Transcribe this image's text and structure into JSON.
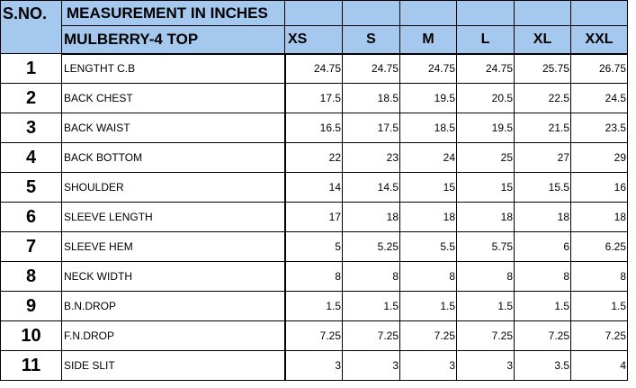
{
  "header": {
    "sno_label": "S.NO.",
    "measurement_label": "MEASUREMENT IN INCHES",
    "style_label": "MULBERRY-4 TOP",
    "sizes": [
      "XS",
      "S",
      "M",
      "L",
      "XL",
      "XXL"
    ]
  },
  "rows": [
    {
      "num": "1",
      "label": "LENGTHT C.B",
      "values": [
        "24.75",
        "24.75",
        "24.75",
        "24.75",
        "25.75",
        "26.75"
      ]
    },
    {
      "num": "2",
      "label": "BACK CHEST",
      "values": [
        "17.5",
        "18.5",
        "19.5",
        "20.5",
        "22.5",
        "24.5"
      ]
    },
    {
      "num": "3",
      "label": "BACK WAIST",
      "values": [
        "16.5",
        "17.5",
        "18.5",
        "19.5",
        "21.5",
        "23.5"
      ]
    },
    {
      "num": "4",
      "label": "BACK BOTTOM",
      "values": [
        "22",
        "23",
        "24",
        "25",
        "27",
        "29"
      ]
    },
    {
      "num": "5",
      "label": "SHOULDER",
      "values": [
        "14",
        "14.5",
        "15",
        "15",
        "15.5",
        "16"
      ]
    },
    {
      "num": "6",
      "label": "SLEEVE LENGTH",
      "values": [
        "17",
        "18",
        "18",
        "18",
        "18",
        "18"
      ]
    },
    {
      "num": "7",
      "label": "SLEEVE HEM",
      "values": [
        "5",
        "5.25",
        "5.5",
        "5.75",
        "6",
        "6.25"
      ]
    },
    {
      "num": "8",
      "label": "NECK WIDTH",
      "values": [
        "8",
        "8",
        "8",
        "8",
        "8",
        "8"
      ]
    },
    {
      "num": "9",
      "label": "B.N.DROP",
      "values": [
        "1.5",
        "1.5",
        "1.5",
        "1.5",
        "1.5",
        "1.5"
      ]
    },
    {
      "num": "10",
      "label": "F.N.DROP",
      "values": [
        "7.25",
        "7.25",
        "7.25",
        "7.25",
        "7.25",
        "7.25"
      ]
    },
    {
      "num": "11",
      "label": "SIDE SLIT",
      "values": [
        "3",
        "3",
        "3",
        "3",
        "3.5",
        "4"
      ]
    }
  ],
  "colors": {
    "header_fill": "#a5c8ee",
    "grid": "#000000"
  }
}
